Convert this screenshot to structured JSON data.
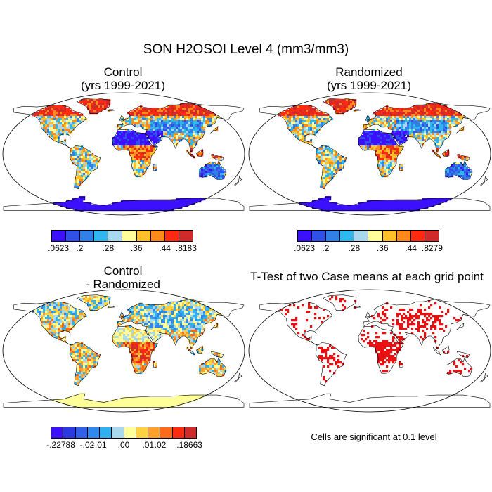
{
  "title": "SON H2OSOI Level 4 (mm3/mm3)",
  "panels": {
    "control": {
      "title_line1": "Control",
      "title_line2": "(yrs 1999-2021)"
    },
    "randomized": {
      "title_line1": "Randomized",
      "title_line2": "(yrs 1999-2021)"
    },
    "difference": {
      "title_line1": "Control",
      "title_line2": "- Randomized"
    },
    "ttest": {
      "title": "T-Test of two Case means at each grid point"
    }
  },
  "colorbars": {
    "control": {
      "colors": [
        "#3a10ff",
        "#3050e8",
        "#3080e8",
        "#30b8ee",
        "#a8d8ee",
        "#ffff9a",
        "#ffc02a",
        "#ff8a1a",
        "#ff2a10",
        "#d02a2a"
      ],
      "labels": [
        ".0623",
        ".2",
        ".28",
        ".36",
        ".44",
        ".8183"
      ]
    },
    "randomized": {
      "colors": [
        "#3a10ff",
        "#3050e8",
        "#3080e8",
        "#30b8ee",
        "#a8d8ee",
        "#ffff9a",
        "#ffc02a",
        "#ff8a1a",
        "#ff2a10",
        "#d02a2a"
      ],
      "labels": [
        ".0623",
        ".2",
        ".28",
        ".36",
        ".44",
        ".8279"
      ]
    },
    "difference": {
      "colors": [
        "#3a10ff",
        "#2a3ae0",
        "#3060e8",
        "#3088ee",
        "#30b0ee",
        "#a8d8ee",
        "#ffff9a",
        "#ffd040",
        "#ffa02a",
        "#ff6a1a",
        "#ff2a10",
        "#d02a2a"
      ],
      "labels": [
        "-.22788",
        "-.02",
        "-.01",
        ".00",
        ".01",
        ".02",
        ".18663"
      ]
    }
  },
  "significance_note": "Cells are significant at 0.1 level"
}
